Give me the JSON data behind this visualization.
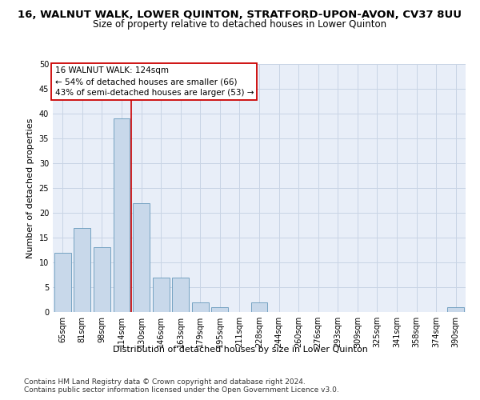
{
  "title": "16, WALNUT WALK, LOWER QUINTON, STRATFORD-UPON-AVON, CV37 8UU",
  "subtitle": "Size of property relative to detached houses in Lower Quinton",
  "xlabel": "Distribution of detached houses by size in Lower Quinton",
  "ylabel": "Number of detached properties",
  "categories": [
    "65sqm",
    "81sqm",
    "98sqm",
    "114sqm",
    "130sqm",
    "146sqm",
    "163sqm",
    "179sqm",
    "195sqm",
    "211sqm",
    "228sqm",
    "244sqm",
    "260sqm",
    "276sqm",
    "293sqm",
    "309sqm",
    "325sqm",
    "341sqm",
    "358sqm",
    "374sqm",
    "390sqm"
  ],
  "values": [
    12,
    17,
    13,
    39,
    22,
    7,
    7,
    2,
    1,
    0,
    2,
    0,
    0,
    0,
    0,
    0,
    0,
    0,
    0,
    0,
    1
  ],
  "bar_color": "#c8d8ea",
  "bar_edge_color": "#6699bb",
  "red_line_x": 3.5,
  "annotation_line1": "16 WALNUT WALK: 124sqm",
  "annotation_line2": "← 54% of detached houses are smaller (66)",
  "annotation_line3": "43% of semi-detached houses are larger (53) →",
  "annotation_box_color": "#ffffff",
  "annotation_box_edge_color": "#cc0000",
  "red_line_color": "#cc0000",
  "footer_line1": "Contains HM Land Registry data © Crown copyright and database right 2024.",
  "footer_line2": "Contains public sector information licensed under the Open Government Licence v3.0.",
  "ylim": [
    0,
    50
  ],
  "yticks": [
    0,
    5,
    10,
    15,
    20,
    25,
    30,
    35,
    40,
    45,
    50
  ],
  "grid_color": "#c8d4e4",
  "bg_color": "#e8eef8",
  "title_fontsize": 9.5,
  "subtitle_fontsize": 8.5,
  "axis_label_fontsize": 8,
  "tick_fontsize": 7,
  "annotation_fontsize": 7.5,
  "footer_fontsize": 6.5
}
